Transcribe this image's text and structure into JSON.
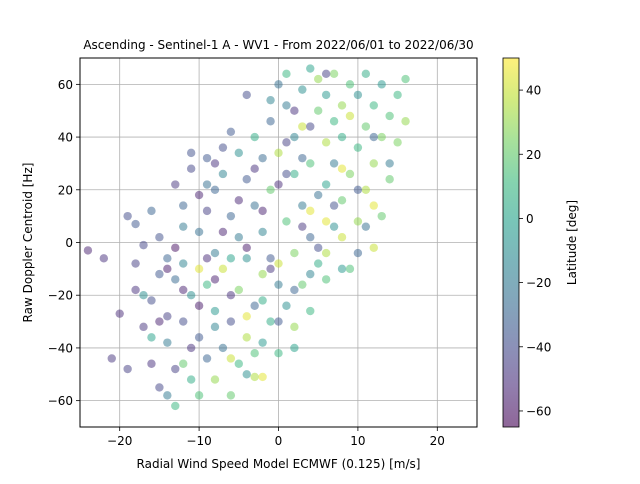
{
  "chart_data": {
    "type": "scatter",
    "title": "Ascending - Sentinel-1 A - WV1 - From 2022/06/01 to 2022/06/30",
    "xlabel": "Radial Wind Speed Model ECMWF (0.125) [m/s]",
    "ylabel": "Raw Doppler Centroid [Hz]",
    "xlim": [
      -25,
      25
    ],
    "ylim": [
      -70,
      70
    ],
    "x_ticks": [
      -20,
      -10,
      0,
      10,
      20
    ],
    "y_ticks": [
      -60,
      -40,
      -20,
      0,
      20,
      40,
      60
    ],
    "x_tick_labels": [
      "−20",
      "−10",
      "0",
      "10",
      "20"
    ],
    "y_tick_labels": [
      "−60",
      "−40",
      "−20",
      "0",
      "20",
      "40",
      "60"
    ],
    "grid": true,
    "marker_alpha": 0.5,
    "colorbar": {
      "label": "Latitude [deg]",
      "range": [
        -65,
        50
      ],
      "ticks": [
        -60,
        -40,
        -20,
        0,
        20,
        40
      ],
      "tick_labels": [
        "−60",
        "−40",
        "−20",
        "0",
        "20",
        "40"
      ],
      "colormap": "viridis",
      "colormap_colors": [
        "#440154",
        "#482878",
        "#3e4989",
        "#31688e",
        "#26828e",
        "#1f9e89",
        "#35b779",
        "#6ece58",
        "#b5de2b",
        "#fde725"
      ]
    },
    "points_columns": [
      "x",
      "y",
      "latitude"
    ],
    "points": [
      [
        -24,
        -3,
        -55
      ],
      [
        -22,
        -6,
        -50
      ],
      [
        -21,
        -44,
        -48
      ],
      [
        -20,
        -27,
        -52
      ],
      [
        -19,
        -48,
        -45
      ],
      [
        -19,
        10,
        -40
      ],
      [
        -18,
        -8,
        -45
      ],
      [
        -18,
        -18,
        -50
      ],
      [
        -18,
        7,
        -35
      ],
      [
        -17,
        -1,
        -42
      ],
      [
        -17,
        -32,
        -48
      ],
      [
        -16,
        -22,
        -40
      ],
      [
        -16,
        12,
        -30
      ],
      [
        -16,
        -46,
        -50
      ],
      [
        -15,
        -12,
        -35
      ],
      [
        -15,
        2,
        -38
      ],
      [
        -15,
        -55,
        -42
      ],
      [
        -14,
        -28,
        -45
      ],
      [
        -14,
        -6,
        -30
      ],
      [
        -14,
        -38,
        -20
      ],
      [
        -13,
        -14,
        -28
      ],
      [
        -13,
        -48,
        -45
      ],
      [
        -13,
        22,
        -48
      ],
      [
        -13,
        -62,
        10
      ],
      [
        -12,
        -8,
        -15
      ],
      [
        -12,
        14,
        -30
      ],
      [
        -12,
        -30,
        -40
      ],
      [
        -11,
        28,
        -42
      ],
      [
        -11,
        -52,
        5
      ],
      [
        -11,
        -20,
        -10
      ],
      [
        -10,
        4,
        -25
      ],
      [
        -10,
        -36,
        -35
      ],
      [
        -10,
        -58,
        15
      ],
      [
        -9,
        -16,
        10
      ],
      [
        -9,
        32,
        -35
      ],
      [
        -9,
        -44,
        -30
      ],
      [
        -9,
        12,
        -45
      ],
      [
        -8,
        -4,
        -20
      ],
      [
        -8,
        -52,
        30
      ],
      [
        -8,
        20,
        -30
      ],
      [
        -8,
        -26,
        -5
      ],
      [
        -7,
        36,
        -40
      ],
      [
        -7,
        -10,
        40
      ],
      [
        -7,
        -40,
        -25
      ],
      [
        -6,
        10,
        -30
      ],
      [
        -6,
        -58,
        20
      ],
      [
        -6,
        -30,
        -40
      ],
      [
        -6,
        42,
        -35
      ],
      [
        -5,
        2,
        -20
      ],
      [
        -5,
        -18,
        25
      ],
      [
        -5,
        -46,
        10
      ],
      [
        -4,
        24,
        -35
      ],
      [
        -4,
        -6,
        -10
      ],
      [
        -4,
        -36,
        35
      ],
      [
        -4,
        56,
        -40
      ],
      [
        -3,
        14,
        -25
      ],
      [
        -3,
        -24,
        -30
      ],
      [
        -3,
        -42,
        15
      ],
      [
        -2,
        -12,
        30
      ],
      [
        -2,
        32,
        -28
      ],
      [
        -2,
        -51,
        45
      ],
      [
        -2,
        4,
        -15
      ],
      [
        -1,
        46,
        -30
      ],
      [
        -1,
        -30,
        5
      ],
      [
        -1,
        20,
        20
      ],
      [
        -1,
        -6,
        -35
      ],
      [
        0,
        60,
        -25
      ],
      [
        0,
        -42,
        10
      ],
      [
        0,
        34,
        35
      ],
      [
        0,
        -16,
        -20
      ],
      [
        1,
        52,
        -20
      ],
      [
        1,
        8,
        15
      ],
      [
        1,
        -24,
        -10
      ],
      [
        1,
        64,
        10
      ],
      [
        2,
        40,
        -15
      ],
      [
        2,
        -4,
        25
      ],
      [
        2,
        26,
        5
      ],
      [
        2,
        -32,
        30
      ],
      [
        3,
        58,
        -10
      ],
      [
        3,
        14,
        -20
      ],
      [
        3,
        44,
        40
      ],
      [
        3,
        -16,
        20
      ],
      [
        4,
        66,
        0
      ],
      [
        4,
        30,
        15
      ],
      [
        4,
        2,
        -30
      ],
      [
        4,
        -26,
        10
      ],
      [
        5,
        50,
        20
      ],
      [
        5,
        18,
        -25
      ],
      [
        5,
        62,
        30
      ],
      [
        5,
        -8,
        5
      ],
      [
        6,
        38,
        35
      ],
      [
        6,
        56,
        -5
      ],
      [
        6,
        22,
        0
      ],
      [
        6,
        -14,
        15
      ],
      [
        7,
        46,
        10
      ],
      [
        7,
        64,
        25
      ],
      [
        7,
        6,
        -10
      ],
      [
        7,
        30,
        -20
      ],
      [
        8,
        52,
        30
      ],
      [
        8,
        16,
        20
      ],
      [
        8,
        40,
        5
      ],
      [
        8,
        -10,
        -5
      ],
      [
        9,
        60,
        15
      ],
      [
        9,
        26,
        25
      ],
      [
        9,
        48,
        40
      ],
      [
        10,
        36,
        10
      ],
      [
        10,
        8,
        30
      ],
      [
        10,
        56,
        -10
      ],
      [
        11,
        44,
        20
      ],
      [
        11,
        20,
        35
      ],
      [
        11,
        64,
        5
      ],
      [
        12,
        30,
        30
      ],
      [
        12,
        52,
        10
      ],
      [
        12,
        -2,
        40
      ],
      [
        13,
        40,
        25
      ],
      [
        13,
        60,
        -5
      ],
      [
        14,
        48,
        15
      ],
      [
        14,
        24,
        20
      ],
      [
        15,
        56,
        10
      ],
      [
        15,
        38,
        25
      ],
      [
        16,
        62,
        15
      ],
      [
        16,
        46,
        30
      ],
      [
        -15,
        -30,
        -55
      ],
      [
        -14,
        -10,
        -58
      ],
      [
        -13,
        -2,
        -60
      ],
      [
        -12,
        -18,
        -55
      ],
      [
        -11,
        -40,
        -50
      ],
      [
        -10,
        -24,
        -58
      ],
      [
        -9,
        -6,
        -52
      ],
      [
        -8,
        -14,
        -56
      ],
      [
        -7,
        4,
        -55
      ],
      [
        -6,
        -20,
        -50
      ],
      [
        -5,
        16,
        -54
      ],
      [
        -4,
        -2,
        -58
      ],
      [
        -3,
        28,
        -50
      ],
      [
        -2,
        12,
        -55
      ],
      [
        -1,
        -10,
        -48
      ],
      [
        0,
        22,
        -52
      ],
      [
        1,
        38,
        -45
      ],
      [
        2,
        50,
        -50
      ],
      [
        3,
        6,
        -48
      ],
      [
        4,
        44,
        -42
      ],
      [
        5,
        -2,
        -40
      ],
      [
        6,
        64,
        -45
      ],
      [
        7,
        14,
        -38
      ],
      [
        -12,
        6,
        -20
      ],
      [
        -10,
        -10,
        45
      ],
      [
        -8,
        -32,
        -15
      ],
      [
        -6,
        -6,
        0
      ],
      [
        -4,
        -28,
        45
      ],
      [
        -2,
        -38,
        -5
      ],
      [
        0,
        -8,
        40
      ],
      [
        2,
        -18,
        -30
      ],
      [
        4,
        12,
        45
      ],
      [
        6,
        -4,
        35
      ],
      [
        8,
        28,
        45
      ],
      [
        10,
        -4,
        -30
      ],
      [
        12,
        14,
        45
      ],
      [
        -17,
        -20,
        -10
      ],
      [
        -16,
        -36,
        0
      ],
      [
        -14,
        -58,
        -20
      ],
      [
        -12,
        -46,
        20
      ],
      [
        -10,
        18,
        -55
      ],
      [
        -8,
        30,
        -50
      ],
      [
        -6,
        -44,
        40
      ],
      [
        -4,
        -50,
        -10
      ],
      [
        -2,
        -22,
        5
      ],
      [
        0,
        -30,
        -35
      ],
      [
        2,
        -40,
        0
      ],
      [
        4,
        -12,
        -15
      ],
      [
        -3,
        -51,
        35
      ],
      [
        6,
        8,
        45
      ],
      [
        8,
        2,
        40
      ],
      [
        10,
        20,
        -35
      ],
      [
        12,
        40,
        -30
      ],
      [
        14,
        30,
        -20
      ],
      [
        9,
        -10,
        15
      ],
      [
        11,
        6,
        -25
      ],
      [
        13,
        10,
        20
      ],
      [
        -11,
        34,
        -38
      ],
      [
        -9,
        22,
        -25
      ],
      [
        -7,
        26,
        -15
      ],
      [
        -5,
        34,
        -10
      ],
      [
        -3,
        40,
        5
      ],
      [
        -1,
        54,
        -15
      ],
      [
        1,
        26,
        -40
      ],
      [
        3,
        32,
        -30
      ]
    ]
  }
}
